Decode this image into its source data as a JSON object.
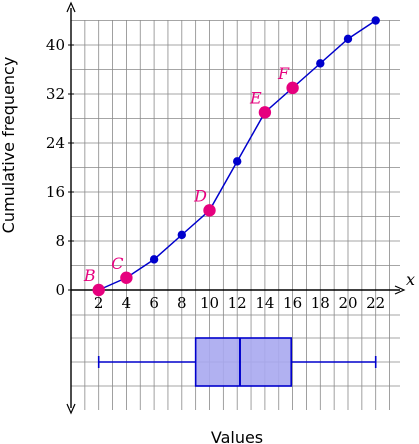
{
  "chart_data": {
    "type": "line",
    "xlabel": "Values",
    "ylabel": "Cumulative frequency",
    "x_axis_name": "x",
    "x": [
      2,
      4,
      6,
      8,
      10,
      12,
      14,
      16,
      18,
      20,
      22
    ],
    "y": [
      0,
      2,
      5,
      9,
      13,
      21,
      29,
      33,
      37,
      41,
      44
    ],
    "x_ticks": [
      2,
      4,
      6,
      8,
      10,
      12,
      14,
      16,
      18,
      20,
      22
    ],
    "y_ticks": [
      0,
      8,
      16,
      24,
      32,
      40
    ],
    "xlim": [
      0,
      23
    ],
    "ylim": [
      0,
      46
    ],
    "grid": true,
    "line_color": "#0000cc",
    "highlight_color": "#e6007e",
    "highlighted_points": [
      {
        "label": "B",
        "x": 2,
        "y": 0
      },
      {
        "label": "C",
        "x": 4,
        "y": 2
      },
      {
        "label": "D",
        "x": 10,
        "y": 13
      },
      {
        "label": "E",
        "x": 14,
        "y": 29
      },
      {
        "label": "F",
        "x": 16,
        "y": 33
      }
    ],
    "boxplot": {
      "min": 2,
      "q1": 9,
      "median": 12.2,
      "q3": 15.9,
      "max": 22,
      "color": "#0000cc",
      "fill": "#a8a8f0"
    }
  }
}
